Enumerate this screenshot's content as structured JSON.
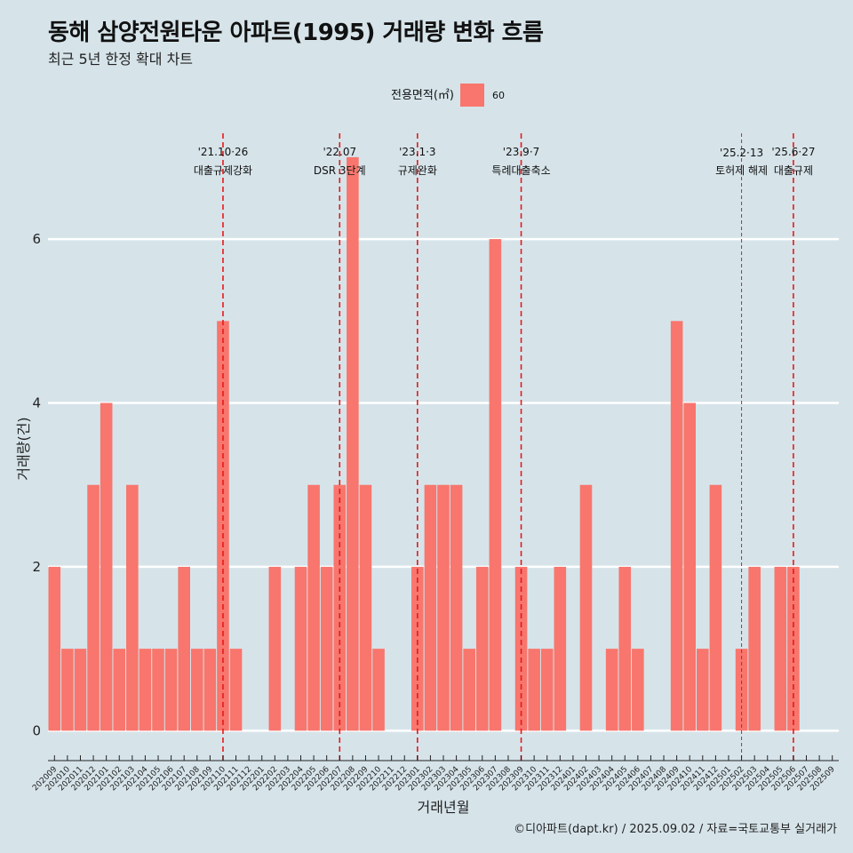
{
  "header": {
    "title": "동해 삼양전원타운 아파트(1995) 거래량 변화 흐름",
    "subtitle": "최근 5년 한정 확대 차트"
  },
  "caption": "©디아파트(dapt.kr) / 2025.09.02 / 자료=국토교통부 실거래가",
  "colors": {
    "background": "#d6e4ea",
    "bar": "#f8766d",
    "event_line": "#e41a1c",
    "grid": "#ffffff"
  },
  "chart_data": {
    "type": "bar",
    "xlabel": "거래년월",
    "ylabel": "거래량(건)",
    "ylim": [
      -0.3,
      7.4
    ],
    "y_ticks": [
      0,
      2,
      4,
      6
    ],
    "legend": {
      "title": "전용면적(㎡)",
      "entries": [
        "60"
      ],
      "position": "top"
    },
    "series": [
      {
        "name": "60"
      }
    ],
    "categories": [
      "202009",
      "202010",
      "202011",
      "202012",
      "202101",
      "202102",
      "202103",
      "202104",
      "202105",
      "202106",
      "202107",
      "202108",
      "202109",
      "202110",
      "202111",
      "202112",
      "202201",
      "202202",
      "202203",
      "202204",
      "202205",
      "202206",
      "202207",
      "202208",
      "202209",
      "202210",
      "202211",
      "202212",
      "202301",
      "202302",
      "202303",
      "202304",
      "202305",
      "202306",
      "202307",
      "202308",
      "202309",
      "202310",
      "202311",
      "202312",
      "202401",
      "202402",
      "202403",
      "202404",
      "202405",
      "202406",
      "202407",
      "202408",
      "202409",
      "202410",
      "202411",
      "202412",
      "202501",
      "202502",
      "202503",
      "202504",
      "202505",
      "202506",
      "202507",
      "202508",
      "202509"
    ],
    "values": [
      2,
      1,
      1,
      3,
      4,
      1,
      3,
      1,
      1,
      1,
      2,
      1,
      1,
      5,
      1,
      0,
      0,
      2,
      0,
      2,
      3,
      2,
      3,
      7,
      3,
      1,
      0,
      0,
      2,
      3,
      3,
      3,
      1,
      2,
      6,
      0,
      2,
      1,
      1,
      2,
      0,
      3,
      0,
      1,
      2,
      1,
      0,
      0,
      5,
      4,
      1,
      3,
      0,
      1,
      2,
      0,
      2,
      2,
      0,
      0,
      0
    ],
    "events": [
      {
        "date": "'21.10·26",
        "label": "대출규제강화",
        "at": "202110"
      },
      {
        "date": "'22.07",
        "label": "DSR 3단계",
        "at": "202207"
      },
      {
        "date": "'23.1·3",
        "label": "규제완화",
        "at": "202301"
      },
      {
        "date": "'23.9·7",
        "label": "특례대출축소",
        "at": "202309"
      },
      {
        "date": "'25.2·13",
        "label": "토허제 해제",
        "at": "202502"
      },
      {
        "date": "'25.6·27",
        "label": "대출규제",
        "at": "202506"
      }
    ]
  }
}
